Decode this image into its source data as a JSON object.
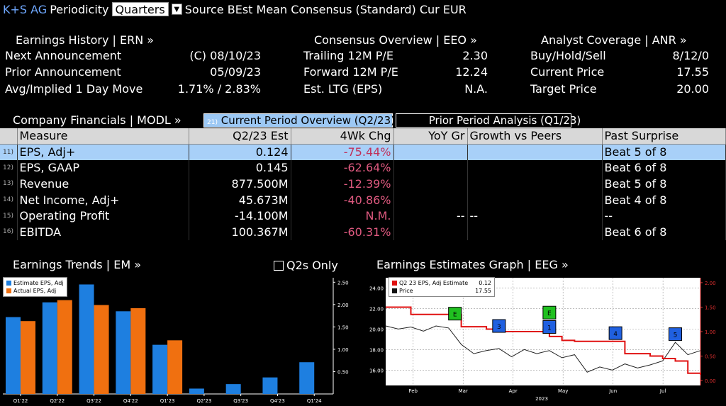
{
  "topbar": {
    "ticker": "K+S AG",
    "periodicity_label": "Periodicity",
    "periodicity_value": "Quarters",
    "source_text": "Source BEst Mean Consensus (Standard) Cur EUR"
  },
  "earnings_history": {
    "title": "Earnings History | ERN »",
    "rows": [
      {
        "label": "Next Announcement",
        "value": "(C)  08/10/23"
      },
      {
        "label": "Prior Announcement",
        "value": "05/09/23"
      },
      {
        "label": "Avg/Implied 1 Day Move",
        "value": "1.71% / 2.83%"
      }
    ]
  },
  "consensus_overview": {
    "title": "Consensus Overview | EEO »",
    "rows": [
      {
        "label": "Trailing 12M P/E",
        "value": "2.30"
      },
      {
        "label": "Forward 12M P/E",
        "value": "12.24"
      },
      {
        "label": "Est. LTG (EPS)",
        "value": "N.A."
      }
    ]
  },
  "analyst_coverage": {
    "title": "Analyst Coverage | ANR »",
    "rows": [
      {
        "label": "Buy/Hold/Sell",
        "value": "8/12/0"
      },
      {
        "label": "Current Price",
        "value": "17.55"
      },
      {
        "label": "Target Price",
        "value": "20.00"
      }
    ]
  },
  "financials": {
    "title": "Company Financials | MODL »",
    "tab_current_num": "21)",
    "tab_current": "Current Period Overview (Q2/23)",
    "tab_prior_num": "22)",
    "tab_prior": "Prior Period Analysis (Q1/23)",
    "columns": [
      "Measure",
      "Q2/23 Est",
      "4Wk Chg",
      "YoY Gr",
      "Growth vs Peers",
      "Past Surprise"
    ],
    "rows": [
      {
        "num": "11)",
        "measure": "EPS, Adj+",
        "est": "0.124",
        "chg": "-75.44%",
        "yoy": "",
        "peers": "",
        "surprise": "Beat 5 of 8"
      },
      {
        "num": "12)",
        "measure": "EPS, GAAP",
        "est": "0.145",
        "chg": "-62.64%",
        "yoy": "",
        "peers": "",
        "surprise": "Beat 6 of 8"
      },
      {
        "num": "13)",
        "measure": "Revenue",
        "est": "877.500M",
        "chg": "-12.39%",
        "yoy": "",
        "peers": "",
        "surprise": "Beat 5 of 8"
      },
      {
        "num": "14)",
        "measure": "Net Income, Adj+",
        "est": "45.673M",
        "chg": "-40.86%",
        "yoy": "",
        "peers": "",
        "surprise": "Beat 4 of 8"
      },
      {
        "num": "15)",
        "measure": "Operating Profit",
        "est": "-14.100M",
        "chg": "N.M.",
        "yoy": "--",
        "peers": "--",
        "surprise": "--"
      },
      {
        "num": "16)",
        "measure": "EBITDA",
        "est": "100.367M",
        "chg": "-60.31%",
        "yoy": "",
        "peers": "",
        "surprise": "Beat 6 of 8"
      }
    ]
  },
  "earnings_trends": {
    "title": "Earnings Trends | EM »",
    "q2s_only_label": "Q2s Only",
    "legend": [
      {
        "name": "Estimate EPS, Adj",
        "color": "#1e7fe0"
      },
      {
        "name": "Actual EPS, Adj",
        "color": "#f07010"
      }
    ]
  },
  "earnings_estimates_graph": {
    "title": "Earnings Estimates Graph | EEG »",
    "legend": [
      {
        "name": "Q2 23 EPS, Adj Estimate",
        "value": "0.12",
        "color": "#e01010"
      },
      {
        "name": "Price",
        "value": "17.55",
        "color": "#111111"
      }
    ]
  },
  "chart_data": [
    {
      "type": "bar",
      "title": "Earnings Trends",
      "categories": [
        "Q1'22",
        "Q2'22",
        "Q3'22",
        "Q4'22",
        "Q1'23",
        "Q2'23",
        "Q3'23",
        "Q4'23",
        "Q1'24"
      ],
      "series": [
        {
          "name": "Estimate EPS, Adj",
          "values": [
            1.72,
            2.05,
            2.45,
            1.85,
            1.1,
            0.12,
            0.22,
            0.37,
            0.71
          ]
        },
        {
          "name": "Actual EPS, Adj",
          "values": [
            1.63,
            2.1,
            1.99,
            1.92,
            1.2,
            null,
            null,
            null,
            null
          ]
        }
      ],
      "y_ticks": [
        "0.50",
        "1.00",
        "1.50",
        "2.00",
        "2.50"
      ],
      "ylim": [
        0,
        2.6
      ],
      "legend_position": "top-left"
    },
    {
      "type": "line",
      "title": "Earnings Estimates Graph",
      "x_ticks": [
        "Feb",
        "Mar",
        "Apr",
        "May",
        "Jun",
        "Jul"
      ],
      "x_year": "2023",
      "y_left_ticks": [
        "16.00",
        "18.00",
        "20.00",
        "22.00",
        "24.00"
      ],
      "y_left_lim": [
        14.5,
        25
      ],
      "y_right_ticks": [
        "0.00",
        "0.50",
        "1.00",
        "1.50",
        "2.00"
      ],
      "y_right_lim": [
        -0.1,
        2.1
      ],
      "series": [
        {
          "name": "Price",
          "axis": "left",
          "x": [
            0,
            4,
            8,
            12,
            16,
            20,
            24,
            28,
            32,
            36,
            40,
            44,
            48,
            52,
            56,
            60,
            64,
            68,
            72,
            76,
            80,
            84,
            88,
            92,
            96,
            100
          ],
          "y": [
            20.3,
            20.0,
            20.2,
            19.8,
            20.3,
            20.1,
            18.5,
            17.6,
            17.9,
            18.1,
            17.3,
            18.0,
            17.6,
            17.9,
            17.2,
            17.5,
            15.8,
            16.3,
            16.0,
            16.6,
            16.2,
            16.5,
            16.9,
            18.7,
            17.5,
            17.9
          ]
        },
        {
          "name": "Q2 23 EPS, Adj Estimate",
          "axis": "right",
          "x": [
            0,
            8,
            16,
            20,
            24,
            28,
            32,
            36,
            44,
            52,
            56,
            60,
            64,
            72,
            76,
            80,
            84,
            88,
            92,
            96,
            100
          ],
          "y": [
            1.5,
            1.35,
            1.35,
            1.35,
            1.1,
            1.1,
            1.05,
            1.0,
            1.0,
            0.9,
            0.82,
            0.8,
            0.8,
            0.8,
            0.55,
            0.55,
            0.5,
            0.45,
            0.4,
            0.15,
            0.12
          ]
        }
      ],
      "markers": [
        {
          "label": "E",
          "x": 22,
          "y": 21.5,
          "color": "#20c020"
        },
        {
          "label": "3",
          "x": 36,
          "y": 20.3,
          "color": "#2060e0"
        },
        {
          "label": "E",
          "x": 52,
          "y": 21.6,
          "color": "#20c020"
        },
        {
          "label": "1",
          "x": 52,
          "y": 20.2,
          "color": "#2060e0"
        },
        {
          "label": "4",
          "x": 73,
          "y": 19.6,
          "color": "#2060e0"
        },
        {
          "label": "5",
          "x": 92,
          "y": 19.5,
          "color": "#2060e0"
        }
      ]
    }
  ]
}
